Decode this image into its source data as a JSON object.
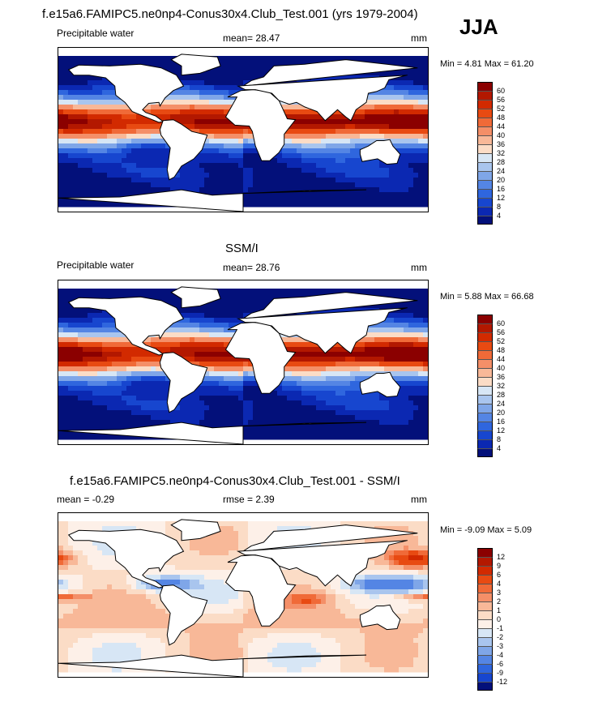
{
  "figure": {
    "season": "JJA"
  },
  "panels": [
    {
      "id": "model",
      "title": "f.e15a6.FAMIPC5.ne0np4-Conus30x4.Club_Test.001 (yrs 1979-2004)",
      "left_label": "Precipitable water",
      "stat_label": "mean=  28.47",
      "units": "mm",
      "minmax": "Min =   4.81 Max =  61.20",
      "colorbar": {
        "labels": [
          "60",
          "56",
          "52",
          "48",
          "44",
          "40",
          "36",
          "32",
          "28",
          "24",
          "20",
          "16",
          "12",
          "8",
          "4"
        ],
        "colors": [
          "#8b0000",
          "#b31800",
          "#d22a00",
          "#e84a12",
          "#f06a38",
          "#f48f68",
          "#f8b898",
          "#fbdcc6",
          "#d7e6f5",
          "#a9c5ee",
          "#7fa6e8",
          "#5485e4",
          "#2f66de",
          "#1746cf",
          "#0b28b2",
          "#03107a"
        ]
      },
      "field": "model"
    },
    {
      "id": "obs",
      "title": "SSM/I",
      "left_label": "Precipitable water",
      "stat_label": "mean=  28.76",
      "units": "mm",
      "minmax": "Min =   5.88 Max =  66.68",
      "colorbar": {
        "labels": [
          "60",
          "56",
          "52",
          "48",
          "44",
          "40",
          "36",
          "32",
          "28",
          "24",
          "20",
          "16",
          "12",
          "8",
          "4"
        ],
        "colors": [
          "#8b0000",
          "#b31800",
          "#d22a00",
          "#e84a12",
          "#f06a38",
          "#f48f68",
          "#f8b898",
          "#fbdcc6",
          "#d7e6f5",
          "#a9c5ee",
          "#7fa6e8",
          "#5485e4",
          "#2f66de",
          "#1746cf",
          "#0b28b2",
          "#03107a"
        ]
      },
      "field": "obs"
    },
    {
      "id": "diff",
      "title": "f.e15a6.FAMIPC5.ne0np4-Conus30x4.Club_Test.001 - SSM/I",
      "left_label": "mean =  -0.29",
      "stat_label": "rmse =   2.39",
      "units": "mm",
      "minmax": "Min =  -9.09 Max =   5.09",
      "colorbar": {
        "labels": [
          "12",
          "9",
          "6",
          "4",
          "3",
          "2",
          "1",
          "0",
          "-1",
          "-2",
          "-3",
          "-4",
          "-6",
          "-9",
          "-12"
        ],
        "colors": [
          "#8b0000",
          "#b31800",
          "#d22a00",
          "#e84a12",
          "#f06a38",
          "#f48f68",
          "#f8b898",
          "#fbdcc6",
          "#fdf0e8",
          "#d7e6f5",
          "#a9c5ee",
          "#7fa6e8",
          "#5485e4",
          "#2f66de",
          "#1746cf",
          "#03107a"
        ]
      },
      "field": "diff"
    }
  ]
}
